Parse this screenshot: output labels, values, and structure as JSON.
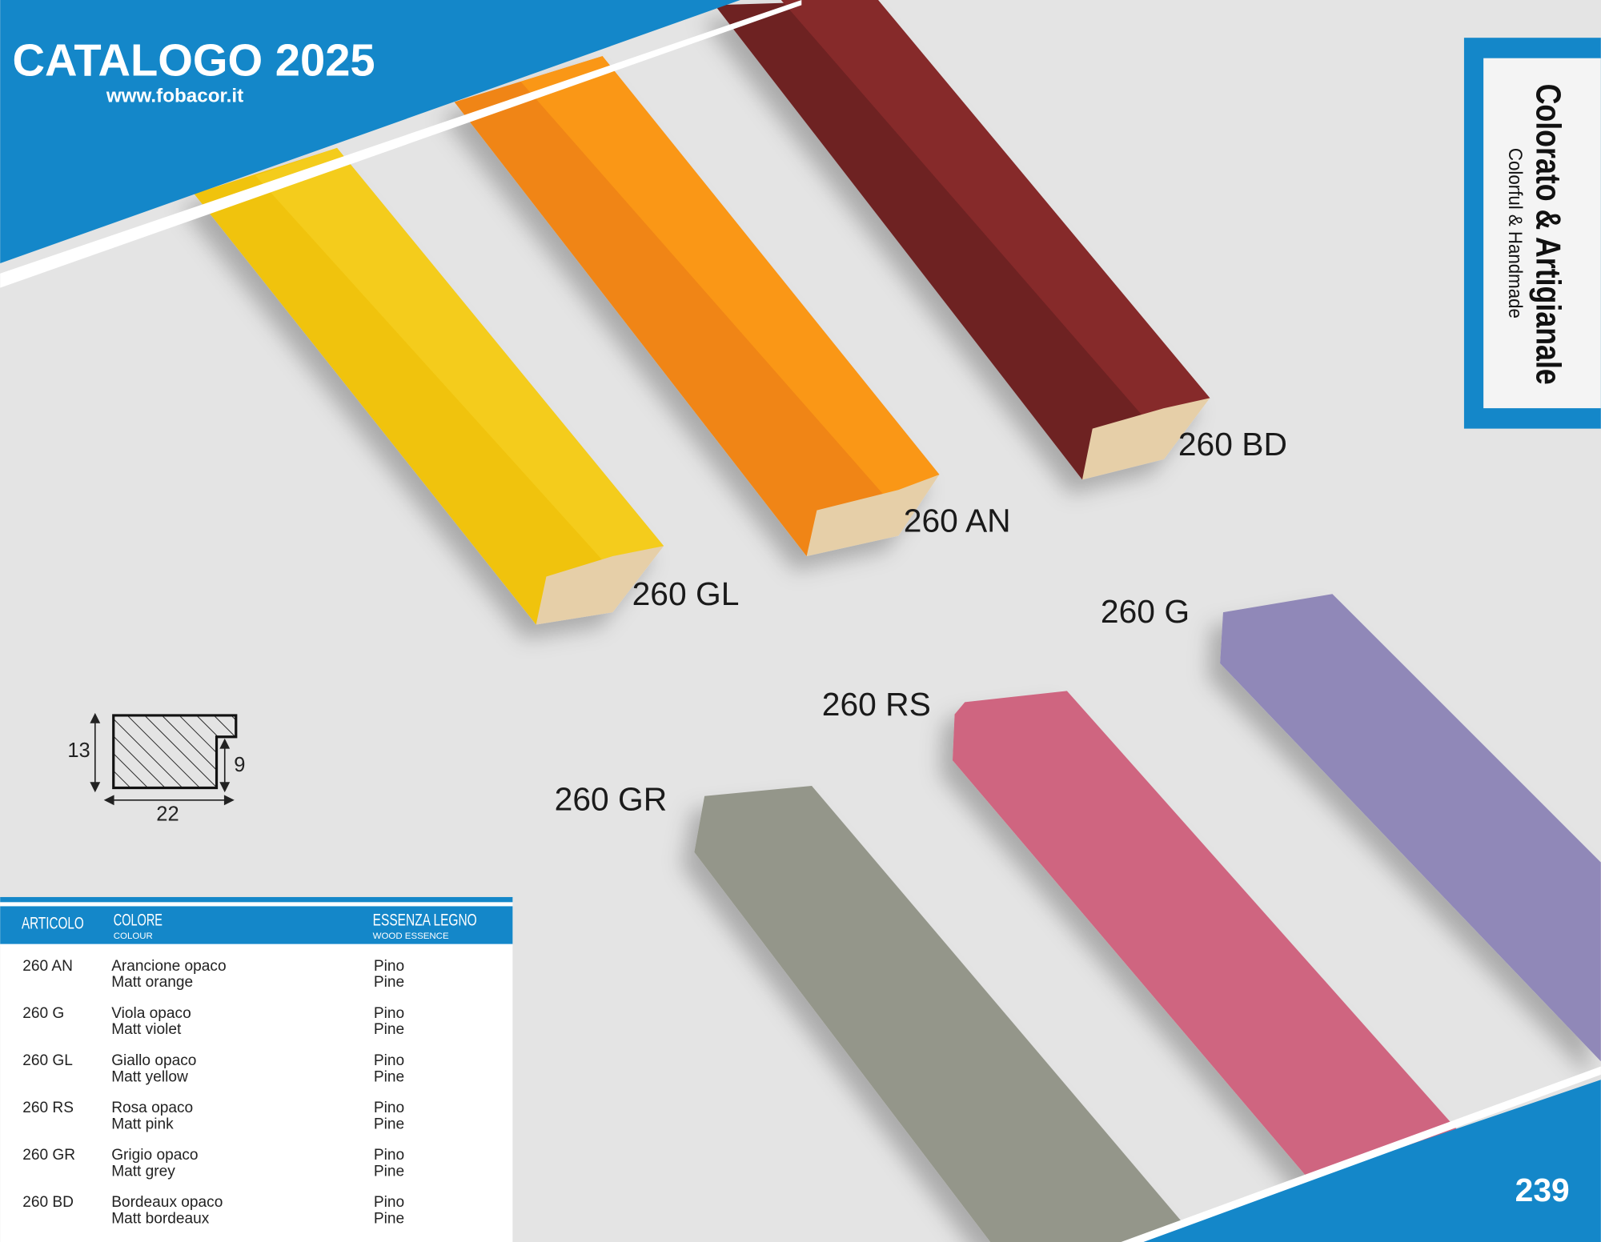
{
  "header": {
    "title": "CATALOGO 2025",
    "url": "www.fobacor.it"
  },
  "side_label": {
    "title": "Colorato & Artigianale",
    "subtitle": "Colorful & Handmade"
  },
  "products": [
    "260 GL",
    "260 AN",
    "260 BD",
    "260 G",
    "260 RS",
    "260 GR"
  ],
  "profile": {
    "height": 13,
    "inner_height": 9,
    "width": 22
  },
  "table": {
    "columns": [
      {
        "label": "ARTICOLO"
      },
      {
        "label": "COLORE",
        "sublabel": "COLOUR"
      },
      {
        "label": "ESSENZA LEGNO",
        "sublabel": "WOOD ESSENCE"
      }
    ],
    "rows": [
      {
        "code": "260 AN",
        "color": [
          "Arancione opaco",
          "Matt orange"
        ],
        "wood": [
          "Pino",
          "Pine"
        ]
      },
      {
        "code": "260 G",
        "color": [
          "Viola opaco",
          "Matt violet"
        ],
        "wood": [
          "Pino",
          "Pine"
        ]
      },
      {
        "code": "260 GL",
        "color": [
          "Giallo opaco",
          "Matt yellow"
        ],
        "wood": [
          "Pino",
          "Pine"
        ]
      },
      {
        "code": "260 RS",
        "color": [
          "Rosa opaco",
          "Matt pink"
        ],
        "wood": [
          "Pino",
          "Pine"
        ]
      },
      {
        "code": "260 GR",
        "color": [
          "Grigio opaco",
          "Matt grey"
        ],
        "wood": [
          "Pino",
          "Pine"
        ]
      },
      {
        "code": "260 BD",
        "color": [
          "Bordeaux opaco",
          "Matt bordeaux"
        ],
        "wood": [
          "Pino",
          "Pine"
        ]
      }
    ]
  },
  "page_number": 239
}
